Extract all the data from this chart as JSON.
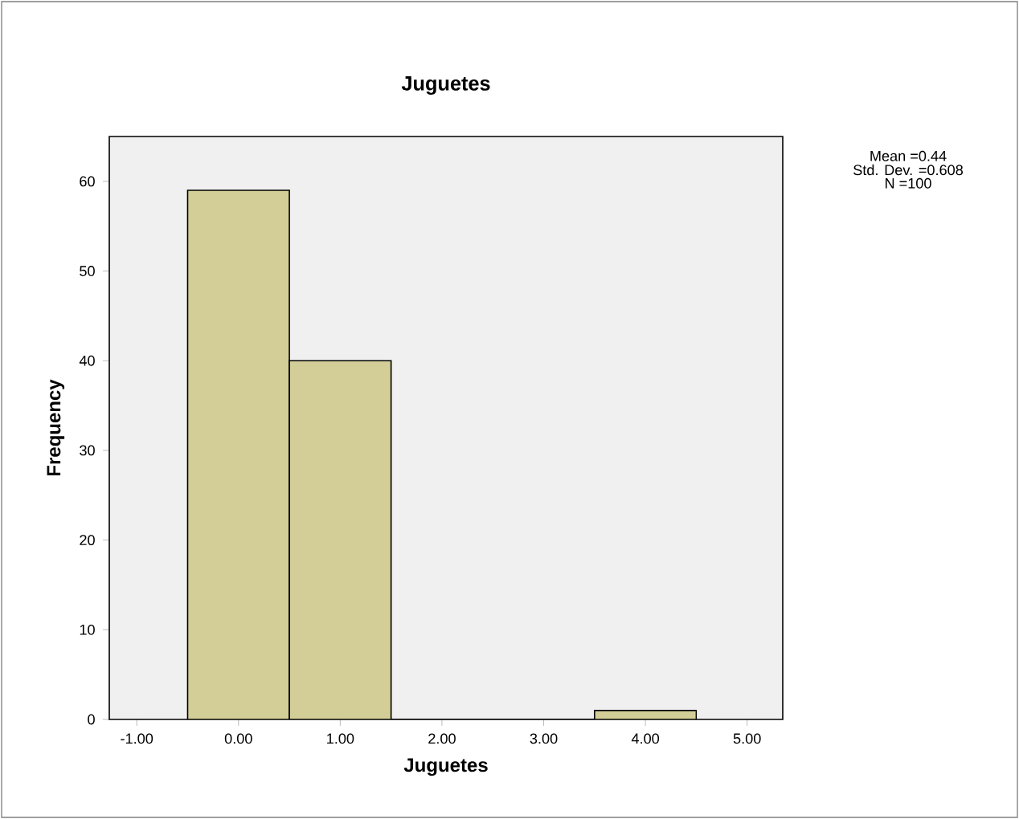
{
  "chart_data": {
    "type": "histogram",
    "title": "Juguetes",
    "xlabel": "Juguetes",
    "ylabel": "Frequency",
    "bins": [
      -0.5,
      0.5,
      1.5,
      2.5,
      3.5,
      4.5
    ],
    "values": [
      59,
      40,
      0,
      0,
      1
    ],
    "color": "#d3ce97",
    "xlim": [
      -1.27,
      5.35
    ],
    "ylim": [
      0,
      65
    ],
    "xticks": [
      {
        "value": -1,
        "label": "-1.00"
      },
      {
        "value": 0,
        "label": "0.00"
      },
      {
        "value": 1,
        "label": "1.00"
      },
      {
        "value": 2,
        "label": "2.00"
      },
      {
        "value": 3,
        "label": "3.00"
      },
      {
        "value": 4,
        "label": "4.00"
      },
      {
        "value": 5,
        "label": "5.00"
      }
    ],
    "yticks": [
      0,
      10,
      20,
      30,
      40,
      50,
      60
    ],
    "annotations": [
      "Mean =0.44",
      "Std. Dev. =0.608",
      "N =100"
    ]
  }
}
